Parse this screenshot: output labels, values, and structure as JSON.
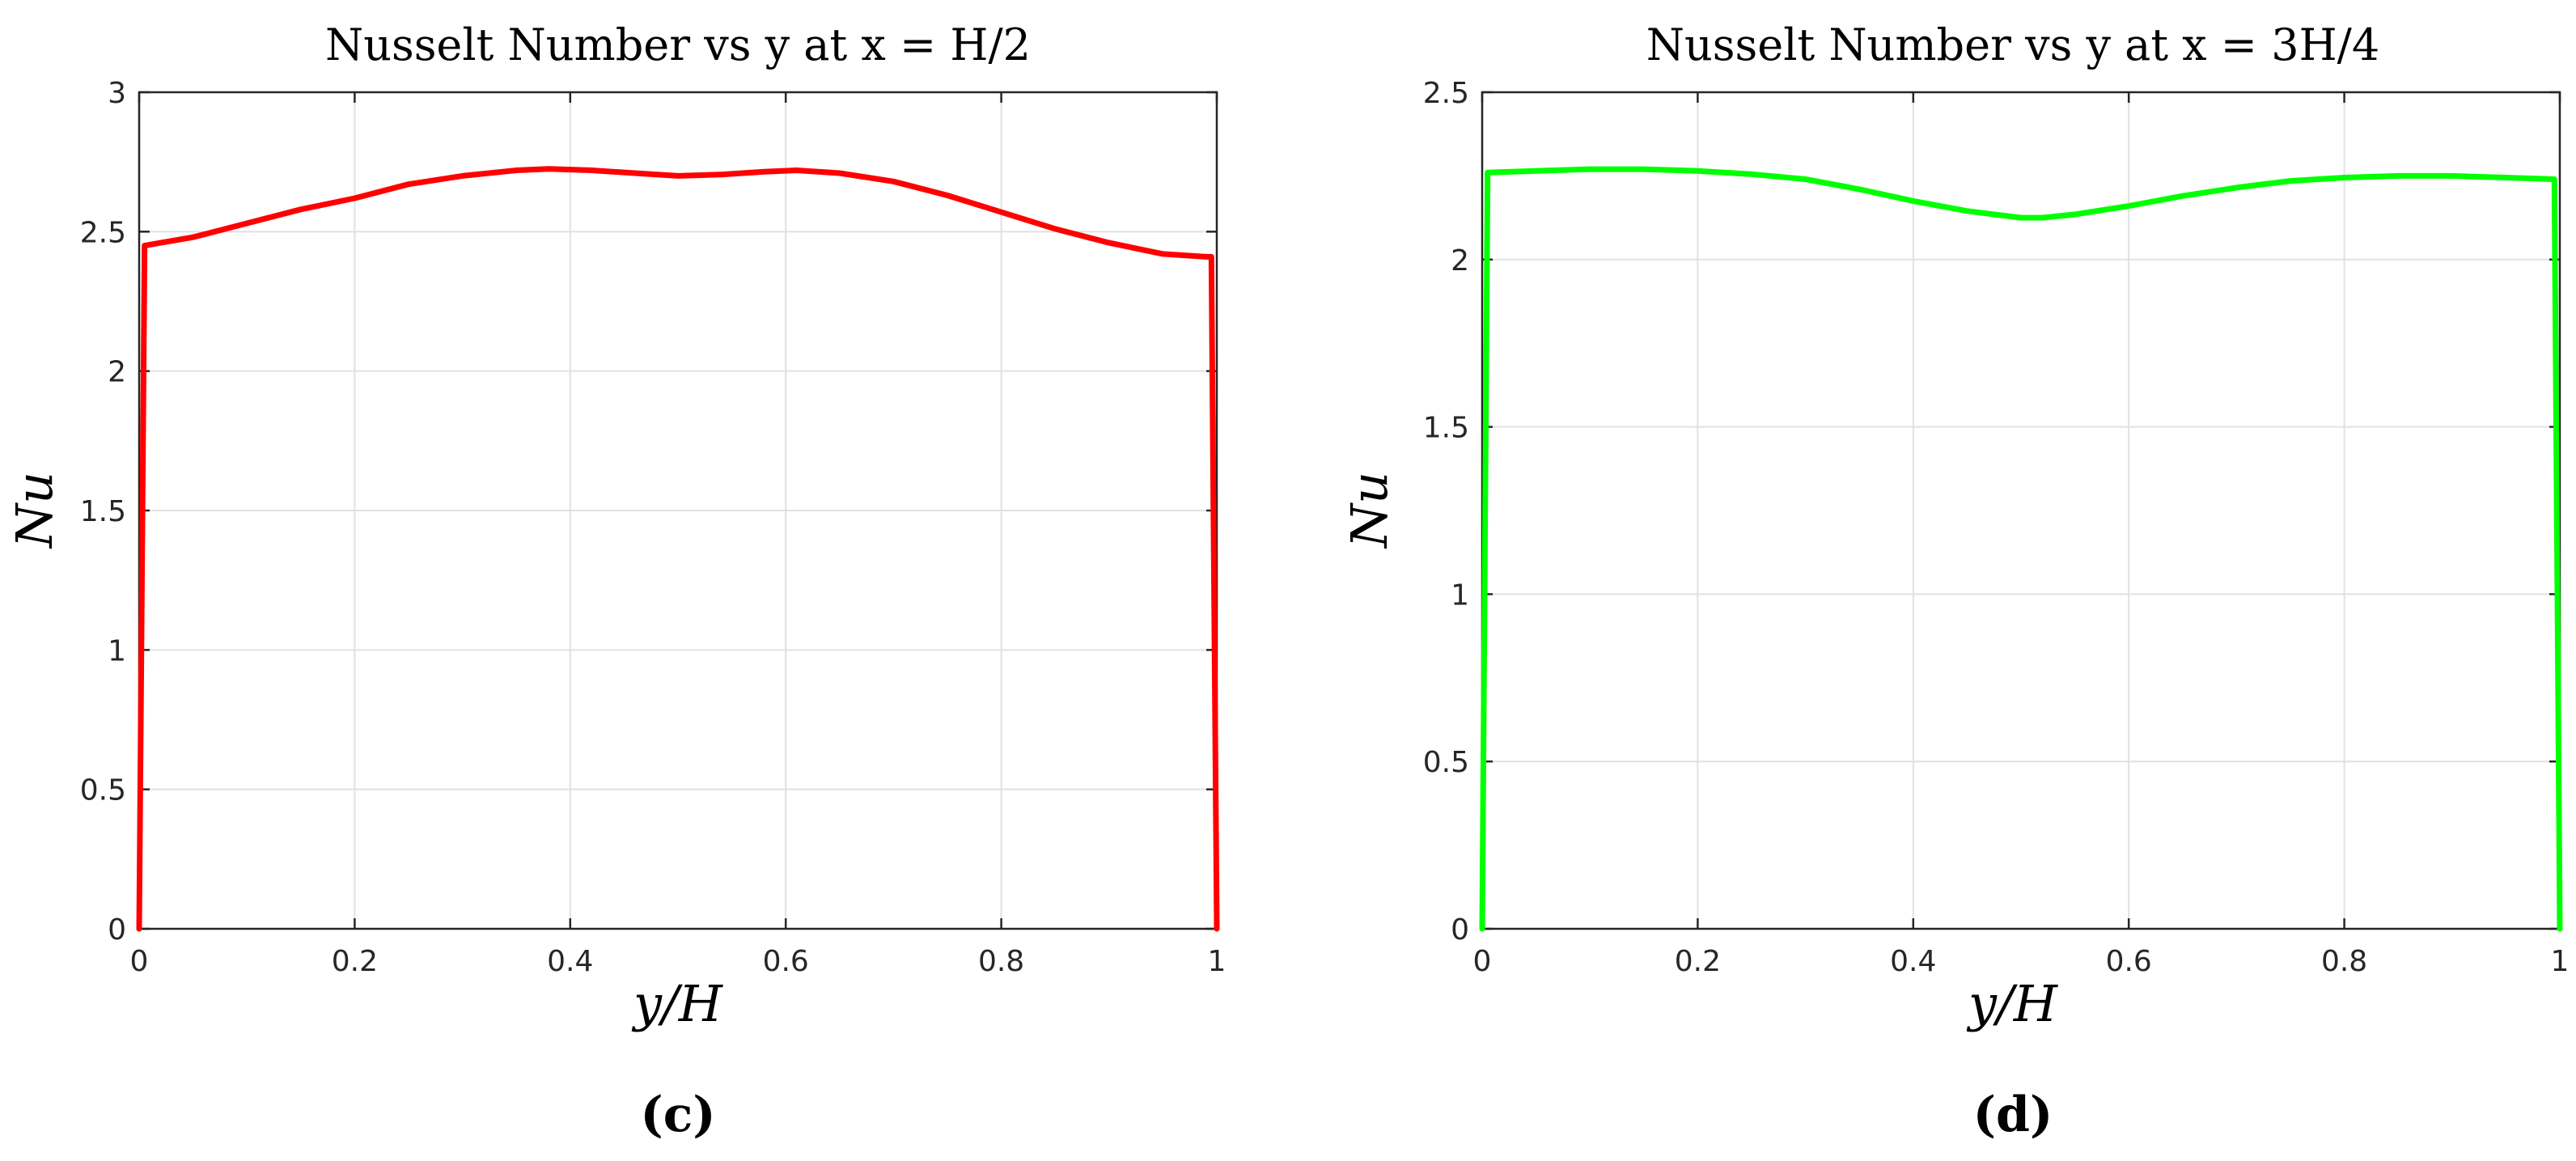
{
  "chart_data": [
    {
      "type": "line",
      "title": "Nusselt Number vs y at x = H/2",
      "xlabel": "y/H",
      "ylabel": "Nu",
      "panel_label": "(c)",
      "xlim": [
        0,
        1
      ],
      "ylim": [
        0,
        3
      ],
      "grid": true,
      "xticks": [
        0,
        0.2,
        0.4,
        0.6,
        0.8,
        1
      ],
      "xtick_labels": [
        "0",
        "0.2",
        "0.4",
        "0.6",
        "0.8",
        "1"
      ],
      "yticks": [
        0,
        0.5,
        1,
        1.5,
        2,
        2.5,
        3
      ],
      "ytick_labels": [
        "0",
        "0.5",
        "1",
        "1.5",
        "2",
        "2.5",
        "3"
      ],
      "series": [
        {
          "color": "#ff0000",
          "x": [
            0,
            0.005,
            0.02,
            0.05,
            0.1,
            0.15,
            0.2,
            0.25,
            0.3,
            0.35,
            0.38,
            0.42,
            0.46,
            0.5,
            0.54,
            0.58,
            0.61,
            0.65,
            0.7,
            0.75,
            0.8,
            0.85,
            0.9,
            0.95,
            0.99,
            0.995,
            1
          ],
          "y": [
            0,
            2.45,
            2.46,
            2.48,
            2.53,
            2.58,
            2.62,
            2.67,
            2.7,
            2.72,
            2.725,
            2.72,
            2.71,
            2.7,
            2.705,
            2.715,
            2.72,
            2.71,
            2.68,
            2.63,
            2.57,
            2.51,
            2.46,
            2.42,
            2.41,
            2.41,
            0
          ]
        }
      ]
    },
    {
      "type": "line",
      "title": "Nusselt Number vs y at x = 3H/4",
      "xlabel": "y/H",
      "ylabel": "Nu",
      "panel_label": "(d)",
      "xlim": [
        0,
        1
      ],
      "ylim": [
        0,
        2.5
      ],
      "grid": true,
      "xticks": [
        0,
        0.2,
        0.4,
        0.6,
        0.8,
        1
      ],
      "xtick_labels": [
        "0",
        "0.2",
        "0.4",
        "0.6",
        "0.8",
        "1"
      ],
      "yticks": [
        0,
        0.5,
        1,
        1.5,
        2,
        2.5
      ],
      "ytick_labels": [
        "0",
        "0.5",
        "1",
        "1.5",
        "2",
        "2.5"
      ],
      "series": [
        {
          "color": "#00ff00",
          "x": [
            0,
            0.005,
            0.05,
            0.1,
            0.15,
            0.2,
            0.25,
            0.3,
            0.35,
            0.4,
            0.45,
            0.5,
            0.52,
            0.55,
            0.6,
            0.65,
            0.7,
            0.75,
            0.8,
            0.85,
            0.9,
            0.95,
            0.995,
            1
          ],
          "y": [
            0,
            2.26,
            2.265,
            2.27,
            2.27,
            2.265,
            2.255,
            2.24,
            2.21,
            2.175,
            2.145,
            2.125,
            2.125,
            2.135,
            2.16,
            2.19,
            2.215,
            2.235,
            2.245,
            2.25,
            2.25,
            2.245,
            2.24,
            0
          ]
        }
      ]
    }
  ]
}
